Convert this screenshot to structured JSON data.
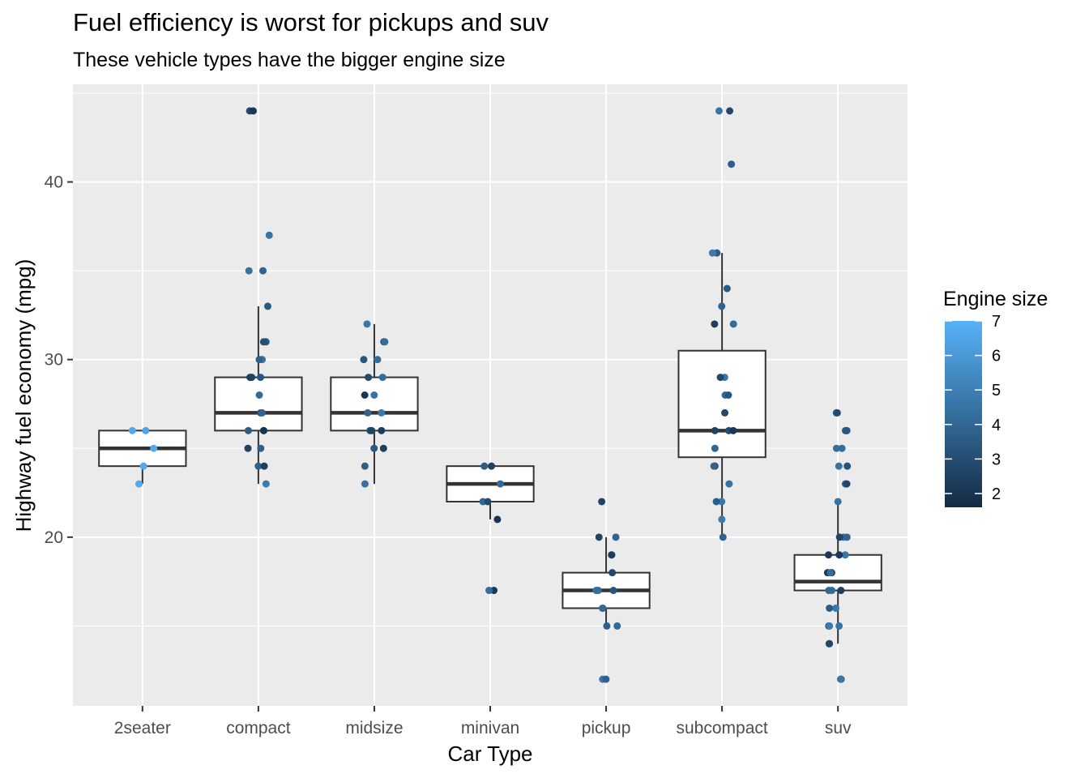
{
  "chart_data": {
    "type": "boxplot-jitter",
    "title": "Fuel efficiency is worst for pickups and suv",
    "subtitle": "These vehicle types have the bigger engine size",
    "xlabel": "Car Type",
    "ylabel": "Highway fuel economy (mpg)",
    "ylim": [
      10.5,
      45.5
    ],
    "yticks": [
      20,
      30,
      40
    ],
    "grid": true,
    "categories": [
      "2seater",
      "compact",
      "midsize",
      "minivan",
      "pickup",
      "subcompact",
      "suv"
    ],
    "boxes": [
      {
        "category": "2seater",
        "q1": 24,
        "median": 25,
        "q3": 26,
        "whisker_low": 23,
        "whisker_high": 26
      },
      {
        "category": "compact",
        "q1": 26,
        "median": 27,
        "q3": 29,
        "whisker_low": 23,
        "whisker_high": 33
      },
      {
        "category": "midsize",
        "q1": 26,
        "median": 27,
        "q3": 29,
        "whisker_low": 23,
        "whisker_high": 32
      },
      {
        "category": "minivan",
        "q1": 22,
        "median": 23,
        "q3": 24,
        "whisker_low": 21,
        "whisker_high": 24
      },
      {
        "category": "pickup",
        "q1": 16,
        "median": 17,
        "q3": 18,
        "whisker_low": 15,
        "whisker_high": 20
      },
      {
        "category": "subcompact",
        "q1": 24.5,
        "median": 26,
        "q3": 30.5,
        "whisker_low": 20,
        "whisker_high": 36
      },
      {
        "category": "suv",
        "q1": 17,
        "median": 17.5,
        "q3": 19,
        "whisker_low": 14,
        "whisker_high": 22
      }
    ],
    "points": [
      {
        "category": "2seater",
        "values": [
          26,
          26,
          25,
          24,
          23
        ]
      },
      {
        "category": "compact",
        "values": [
          44,
          44,
          37,
          35,
          35,
          33,
          31,
          31,
          30,
          30,
          29,
          29,
          29,
          28,
          27,
          27,
          26,
          26,
          26,
          25,
          25,
          24,
          24,
          23
        ]
      },
      {
        "category": "midsize",
        "values": [
          32,
          31,
          31,
          30,
          30,
          29,
          29,
          28,
          28,
          27,
          27,
          26,
          26,
          26,
          25,
          25,
          24,
          23
        ]
      },
      {
        "category": "minivan",
        "values": [
          24,
          24,
          23,
          22,
          22,
          21,
          17,
          17
        ]
      },
      {
        "category": "pickup",
        "values": [
          22,
          20,
          20,
          19,
          19,
          18,
          17,
          17,
          17,
          16,
          16,
          15,
          15,
          12,
          12
        ]
      },
      {
        "category": "subcompact",
        "values": [
          44,
          44,
          41,
          36,
          36,
          34,
          33,
          32,
          32,
          29,
          29,
          28,
          28,
          27,
          26,
          26,
          26,
          25,
          24,
          24,
          23,
          22,
          22,
          21,
          20
        ]
      },
      {
        "category": "suv",
        "values": [
          27,
          27,
          26,
          26,
          25,
          25,
          24,
          24,
          23,
          23,
          22,
          20,
          20,
          20,
          19,
          19,
          19,
          18,
          18,
          18,
          17,
          17,
          17,
          16,
          16,
          15,
          15,
          15,
          14,
          14,
          12,
          12
        ]
      }
    ],
    "color_by": "engine size",
    "legend": {
      "title": "Engine size",
      "ticks": [
        2,
        3,
        4,
        5,
        6,
        7
      ],
      "range": [
        1.6,
        7
      ],
      "low_color": "#132B43",
      "high_color": "#56B1F7",
      "placement": "right"
    },
    "colors": {
      "panel_background": "#EBEBEB",
      "grid_line": "#FFFFFF",
      "box_fill": "#FFFFFF",
      "box_stroke": "#333333"
    }
  }
}
